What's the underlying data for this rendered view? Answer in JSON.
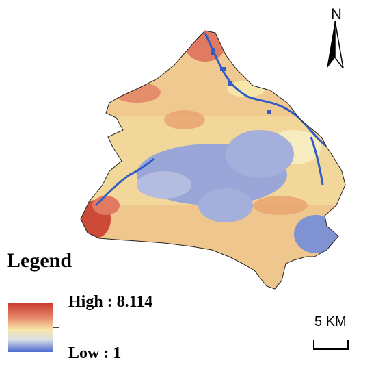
{
  "legend": {
    "title": "Legend",
    "high_label": "High : 8.114",
    "low_label": "Low : 1",
    "high_value": 8.114,
    "low_value": 1,
    "ramp_colors": [
      "#c8392e",
      "#e8866a",
      "#f6e6a8",
      "#d9dfe6",
      "#4e6bcf"
    ]
  },
  "north_arrow": {
    "letter": "N"
  },
  "scale_bar": {
    "label": "5 KM"
  },
  "colors": {
    "high": "#c8392e",
    "mid_high": "#e9a26e",
    "mid": "#f6e3a4",
    "low_mid": "#8c9cd6",
    "water": "#2f5cc7"
  }
}
